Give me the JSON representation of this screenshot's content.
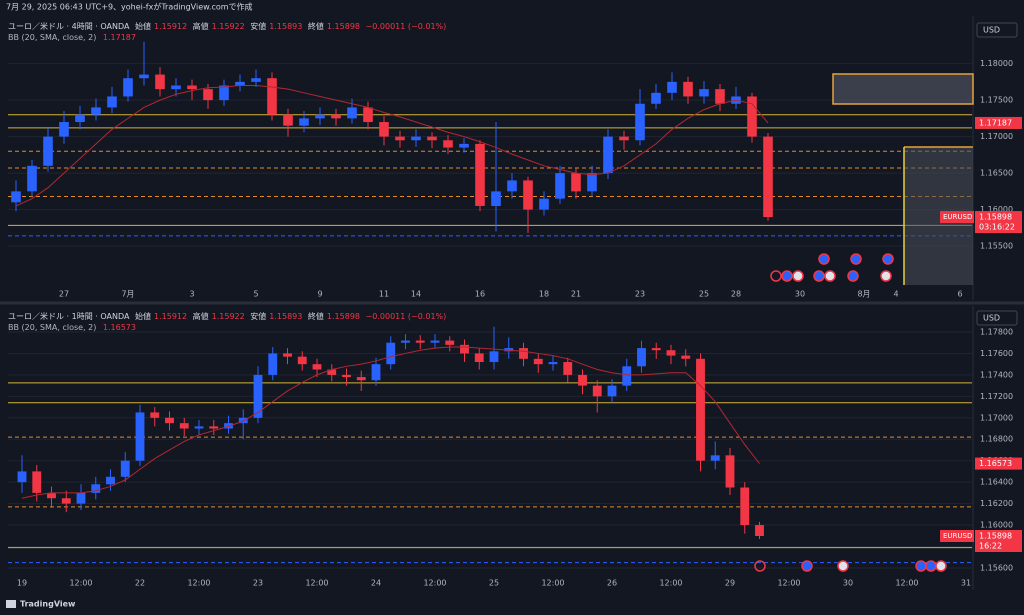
{
  "header": {
    "text": "7月 29, 2025 06:43 UTC+9、yohei-fxがTradingView.comで作成"
  },
  "footer": {
    "brand": "TradingView"
  },
  "chart_data": [
    {
      "type": "candlestick",
      "title": "ユーロ／米ドル · 4時間 · OANDA",
      "ohlc": [
        {
          "label": "始値",
          "value": 1.15912
        },
        {
          "label": "高値",
          "value": 1.15922
        },
        {
          "label": "安値",
          "value": 1.15893
        },
        {
          "label": "終値",
          "value": 1.15898
        }
      ],
      "change": "−0.00011 (−0.01%)",
      "currency": "USD",
      "symbol": "EURUSD",
      "countdown": "03:16:22",
      "up_color": "#2962ff",
      "down_color": "#f23645",
      "grid": true,
      "ylim": [
        1.1494,
        1.1857
      ],
      "yticks": [
        {
          "value": 1.155,
          "label": "1.15500"
        },
        {
          "value": 1.16,
          "label": "1.16000"
        },
        {
          "value": 1.165,
          "label": "1.16500"
        },
        {
          "value": 1.17,
          "label": "1.17000"
        },
        {
          "value": 1.175,
          "label": "1.17500"
        },
        {
          "value": 1.18,
          "label": "1.18000"
        }
      ],
      "categories": [
        null,
        null,
        null,
        "27",
        null,
        null,
        null,
        "7月",
        null,
        null,
        null,
        "3",
        null,
        null,
        null,
        "5",
        null,
        null,
        null,
        "9",
        null,
        null,
        null,
        "11",
        null,
        "14",
        null,
        null,
        null,
        "16",
        null,
        null,
        null,
        "18",
        null,
        "21",
        null,
        null,
        null,
        "23",
        null,
        null,
        null,
        "25",
        null,
        "28",
        null,
        null,
        null,
        "30",
        null,
        null,
        null,
        "8月",
        null,
        "4",
        null,
        null,
        null,
        "6"
      ],
      "open": [
        1.161,
        1.1625,
        1.166,
        1.17,
        1.172,
        1.173,
        1.174,
        1.1755,
        1.178,
        1.1785,
        1.1765,
        1.177,
        1.1765,
        1.175,
        1.177,
        1.1775,
        1.178,
        1.173,
        1.1715,
        1.1725,
        1.173,
        1.1725,
        1.174,
        1.172,
        1.17,
        1.1695,
        1.17,
        1.1695,
        1.1685,
        1.169,
        1.1605,
        1.1625,
        1.164,
        1.16,
        1.1615,
        1.165,
        1.1625,
        1.165,
        1.17,
        1.1695,
        1.1745,
        1.176,
        1.1775,
        1.1755,
        1.1765,
        1.1745,
        1.1755,
        1.17,
        null,
        null,
        null,
        null,
        null,
        null,
        null,
        null,
        null,
        null,
        null,
        null
      ],
      "high": [
        1.164,
        1.1668,
        1.1712,
        1.1735,
        1.1742,
        1.1752,
        1.1768,
        1.1792,
        1.183,
        1.1795,
        1.178,
        1.1778,
        1.1772,
        1.1778,
        1.1785,
        1.1792,
        1.1788,
        1.1738,
        1.1735,
        1.174,
        1.1738,
        1.1752,
        1.1748,
        1.1728,
        1.1708,
        1.171,
        1.1706,
        1.1702,
        1.1698,
        1.1695,
        1.172,
        1.165,
        1.1645,
        1.1625,
        1.166,
        1.1656,
        1.166,
        1.171,
        1.1708,
        1.1765,
        1.1772,
        1.1788,
        1.1782,
        1.1776,
        1.1772,
        1.1768,
        1.176,
        1.1705,
        null,
        null,
        null,
        null,
        null,
        null,
        null,
        null,
        null,
        null,
        null,
        null
      ],
      "low": [
        1.1598,
        1.1618,
        1.1652,
        1.169,
        1.171,
        1.1722,
        1.1732,
        1.1748,
        1.177,
        1.1755,
        1.1755,
        1.175,
        1.1738,
        1.1742,
        1.1762,
        1.1768,
        1.1722,
        1.17,
        1.1706,
        1.1716,
        1.1715,
        1.1718,
        1.171,
        1.1688,
        1.1685,
        1.1686,
        1.1684,
        1.1676,
        1.1678,
        1.1598,
        1.157,
        1.1615,
        1.1568,
        1.1592,
        1.1608,
        1.1615,
        1.1618,
        1.1642,
        1.1682,
        1.1688,
        1.1738,
        1.175,
        1.1745,
        1.1745,
        1.1735,
        1.1738,
        1.1692,
        1.1585,
        null,
        null,
        null,
        null,
        null,
        null,
        null,
        null,
        null,
        null,
        null,
        null
      ],
      "close": [
        1.1625,
        1.166,
        1.17,
        1.172,
        1.173,
        1.174,
        1.1755,
        1.178,
        1.1785,
        1.1765,
        1.177,
        1.1765,
        1.175,
        1.177,
        1.1775,
        1.178,
        1.173,
        1.1715,
        1.1725,
        1.173,
        1.1725,
        1.174,
        1.172,
        1.17,
        1.1695,
        1.17,
        1.1695,
        1.1685,
        1.169,
        1.1605,
        1.1625,
        1.164,
        1.16,
        1.1615,
        1.165,
        1.1625,
        1.165,
        1.17,
        1.1695,
        1.1745,
        1.176,
        1.1775,
        1.1755,
        1.1765,
        1.1745,
        1.1755,
        1.17,
        1.15898,
        null,
        null,
        null,
        null,
        null,
        null,
        null,
        null,
        null,
        null,
        null,
        null
      ],
      "ma": {
        "name": "BB (20, SMA, close, 2)",
        "color": "#b22833",
        "values": [
          1.1605,
          1.1615,
          1.163,
          1.165,
          1.167,
          1.169,
          1.171,
          1.1725,
          1.174,
          1.175,
          1.1758,
          1.1763,
          1.1767,
          1.1768,
          1.177,
          1.177,
          1.1768,
          1.1765,
          1.176,
          1.1755,
          1.175,
          1.1745,
          1.174,
          1.1733,
          1.1727,
          1.172,
          1.1713,
          1.1706,
          1.17,
          1.1693,
          1.1685,
          1.1676,
          1.1668,
          1.166,
          1.1655,
          1.165,
          1.1648,
          1.165,
          1.166,
          1.1675,
          1.169,
          1.171,
          1.1725,
          1.1737,
          1.1745,
          1.175,
          1.1745,
          1.17187,
          null,
          null,
          null,
          null,
          null,
          null,
          null,
          null,
          null,
          null,
          null,
          null
        ]
      },
      "levels": [
        {
          "value": 1.173,
          "color": "#d4b43a",
          "style": "solid"
        },
        {
          "value": 1.1712,
          "color": "#d4b43a",
          "style": "solid"
        },
        {
          "value": 1.168,
          "color": "#e08a2c",
          "style": "dashed"
        },
        {
          "value": 1.1657,
          "color": "#e08a2c",
          "style": "dashed"
        },
        {
          "value": 1.1618,
          "color": "#e08a2c",
          "style": "dashed"
        },
        {
          "value": 1.15785,
          "color": "#d4b43a",
          "style": "solid"
        },
        {
          "value": 1.1564,
          "color": "#2962ff",
          "style": "dashed"
        }
      ]
    },
    {
      "type": "candlestick",
      "title": "ユーロ／米ドル · 1時間 · OANDA",
      "ohlc": [
        {
          "label": "始値",
          "value": 1.15912
        },
        {
          "label": "高値",
          "value": 1.15922
        },
        {
          "label": "安値",
          "value": 1.15893
        },
        {
          "label": "終値",
          "value": 1.15898
        }
      ],
      "change": "−0.00011 (−0.01%)",
      "currency": "USD",
      "symbol": "EURUSD",
      "countdown": "16:22",
      "up_color": "#2962ff",
      "down_color": "#f23645",
      "grid": true,
      "ylim": [
        1.15553,
        1.18005
      ],
      "yticks": [
        {
          "value": 1.156,
          "label": "1.15600"
        },
        {
          "value": 1.158,
          "label": "1.15800"
        },
        {
          "value": 1.16,
          "label": "1.16000"
        },
        {
          "value": 1.162,
          "label": "1.16200"
        },
        {
          "value": 1.164,
          "label": "1.16400"
        },
        {
          "value": 1.166,
          "label": "1.16600"
        },
        {
          "value": 1.168,
          "label": "1.16800"
        },
        {
          "value": 1.17,
          "label": "1.17000"
        },
        {
          "value": 1.172,
          "label": "1.17200"
        },
        {
          "value": 1.174,
          "label": "1.17400"
        },
        {
          "value": 1.176,
          "label": "1.17600"
        },
        {
          "value": 1.178,
          "label": "1.17800"
        }
      ],
      "categories": [
        "19",
        null,
        null,
        null,
        "12:00",
        null,
        null,
        null,
        "22",
        null,
        null,
        null,
        "12:00",
        null,
        null,
        null,
        "23",
        null,
        null,
        null,
        "12:00",
        null,
        null,
        null,
        "24",
        null,
        null,
        null,
        "12:00",
        null,
        null,
        null,
        "25",
        null,
        null,
        null,
        "12:00",
        null,
        null,
        null,
        "26",
        null,
        null,
        null,
        "12:00",
        null,
        null,
        null,
        "29",
        null,
        null,
        null,
        "12:00",
        null,
        null,
        null,
        "30",
        null,
        null,
        null,
        "12:00",
        null,
        null,
        null,
        "31"
      ],
      "open": [
        1.164,
        1.165,
        1.163,
        1.1625,
        1.162,
        1.163,
        1.1638,
        1.1645,
        1.166,
        1.1705,
        1.17,
        1.1695,
        1.169,
        1.1692,
        1.169,
        1.1695,
        1.17,
        1.174,
        1.176,
        1.1757,
        1.175,
        1.1745,
        1.174,
        1.1738,
        1.1735,
        1.175,
        1.177,
        1.1772,
        1.177,
        1.1772,
        1.1768,
        1.176,
        1.1752,
        1.1762,
        1.1765,
        1.1755,
        1.175,
        1.1752,
        1.174,
        1.173,
        1.172,
        1.173,
        1.1748,
        1.1765,
        1.1763,
        1.1758,
        1.1755,
        1.166,
        1.1665,
        1.1635,
        1.16,
        null,
        null,
        null,
        null,
        null,
        null,
        null,
        null,
        null,
        null,
        null,
        null,
        null,
        null
      ],
      "high": [
        1.1665,
        1.1656,
        1.1636,
        1.1632,
        1.1638,
        1.1645,
        1.1652,
        1.1668,
        1.1712,
        1.171,
        1.1706,
        1.17,
        1.1698,
        1.1698,
        1.1702,
        1.1708,
        1.1748,
        1.1766,
        1.1765,
        1.1762,
        1.1755,
        1.175,
        1.1746,
        1.1744,
        1.1756,
        1.1776,
        1.1778,
        1.1777,
        1.1778,
        1.1776,
        1.1773,
        1.1765,
        1.1785,
        1.1775,
        1.177,
        1.176,
        1.1758,
        1.1756,
        1.1745,
        1.1735,
        1.1736,
        1.1755,
        1.1772,
        1.177,
        1.1768,
        1.1764,
        1.176,
        1.1678,
        1.1672,
        1.164,
        1.1603,
        null,
        null,
        null,
        null,
        null,
        null,
        null,
        null,
        null,
        null,
        null,
        null,
        null,
        null
      ],
      "low": [
        1.163,
        1.1622,
        1.1616,
        1.1612,
        1.1614,
        1.1624,
        1.1632,
        1.164,
        1.1655,
        1.1692,
        1.1688,
        1.1683,
        1.1684,
        1.1684,
        1.1685,
        1.168,
        1.1695,
        1.1735,
        1.175,
        1.1744,
        1.1738,
        1.1734,
        1.173,
        1.1725,
        1.173,
        1.1745,
        1.1764,
        1.1764,
        1.1765,
        1.1762,
        1.1752,
        1.1745,
        1.1745,
        1.1755,
        1.1748,
        1.1742,
        1.1744,
        1.1733,
        1.1722,
        1.1705,
        1.1714,
        1.1725,
        1.1742,
        1.1755,
        1.175,
        1.1748,
        1.165,
        1.1652,
        1.1628,
        1.1592,
        1.1587,
        null,
        null,
        null,
        null,
        null,
        null,
        null,
        null,
        null,
        null,
        null,
        null,
        null,
        null
      ],
      "close": [
        1.165,
        1.163,
        1.1625,
        1.162,
        1.163,
        1.1638,
        1.1645,
        1.166,
        1.1705,
        1.17,
        1.1695,
        1.169,
        1.1692,
        1.169,
        1.1695,
        1.17,
        1.174,
        1.176,
        1.1757,
        1.175,
        1.1745,
        1.174,
        1.1738,
        1.1735,
        1.175,
        1.177,
        1.1772,
        1.177,
        1.1772,
        1.1768,
        1.176,
        1.1752,
        1.1762,
        1.1765,
        1.1755,
        1.175,
        1.1752,
        1.174,
        1.173,
        1.172,
        1.173,
        1.1748,
        1.1765,
        1.1763,
        1.1758,
        1.1755,
        1.166,
        1.1665,
        1.1635,
        1.16,
        1.15898,
        null,
        null,
        null,
        null,
        null,
        null,
        null,
        null,
        null,
        null,
        null,
        null,
        null,
        null
      ],
      "ma": {
        "name": "BB (20, SMA, close, 2)",
        "color": "#b22833",
        "values": [
          1.1625,
          1.1628,
          1.163,
          1.163,
          1.163,
          1.1632,
          1.1636,
          1.1642,
          1.1652,
          1.1662,
          1.167,
          1.1678,
          1.1684,
          1.1688,
          1.1692,
          1.1697,
          1.1705,
          1.1715,
          1.1725,
          1.1733,
          1.174,
          1.1745,
          1.1748,
          1.175,
          1.1753,
          1.1757,
          1.176,
          1.1763,
          1.1765,
          1.1766,
          1.1766,
          1.1765,
          1.1764,
          1.1763,
          1.1762,
          1.176,
          1.1758,
          1.1755,
          1.175,
          1.1745,
          1.1742,
          1.174,
          1.174,
          1.1741,
          1.1742,
          1.1742,
          1.173,
          1.1715,
          1.1695,
          1.1675,
          1.16573,
          null,
          null,
          null,
          null,
          null,
          null,
          null,
          null,
          null,
          null,
          null,
          null,
          null,
          null
        ]
      },
      "levels": [
        {
          "value": 1.17325,
          "color": "#d4b43a",
          "style": "solid"
        },
        {
          "value": 1.1714,
          "color": "#d4b43a",
          "style": "solid"
        },
        {
          "value": 1.1682,
          "color": "#e08a2c",
          "style": "dashed"
        },
        {
          "value": 1.1617,
          "color": "#e08a2c",
          "style": "dashed"
        },
        {
          "value": 1.1579,
          "color": "#d4b43a",
          "style": "solid"
        },
        {
          "value": 1.1565,
          "color": "#2962ff",
          "style": "dashed"
        }
      ]
    }
  ]
}
